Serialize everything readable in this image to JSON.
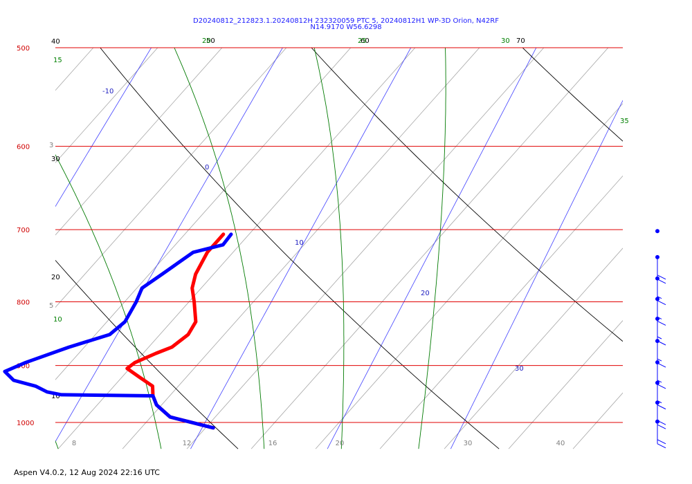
{
  "header": {
    "title_line1": "D20240812_212823.1.20240812H 232320059 PTC 5, 20240812H1 WP-3D Orion, N42RF",
    "title_line2": "N14.9170 W56.6298"
  },
  "footer": {
    "text": "Aspen V4.0.2, 12 Aug 2024  22:16 UTC"
  },
  "chart_data": {
    "type": "line",
    "subtype": "skew-T log-P diagram",
    "pressure_axis": {
      "ticks": [
        "500",
        "600",
        "700",
        "800",
        "900",
        "1000"
      ]
    },
    "temperature_axis": {
      "ticks": [
        "8",
        "12",
        "16",
        "20",
        "30",
        "40"
      ]
    },
    "isotherm_labels": [
      "-10",
      "0",
      "10",
      "20",
      "30"
    ],
    "mixing_ratio_labels": [
      "3",
      "5"
    ],
    "dry_adiabat_labels": [
      "40",
      "30",
      "20",
      "10",
      "50",
      "60",
      "70"
    ],
    "moist_adiabat_labels": [
      "15",
      "10",
      "20",
      "25",
      "30",
      "35"
    ],
    "series": [
      {
        "name": "",
        "color": "#ff0000",
        "points": [
          [
            706,
            -2.0
          ],
          [
            730,
            -2.0
          ],
          [
            760,
            -1.4
          ],
          [
            780,
            -0.7
          ],
          [
            800,
            0.4
          ],
          [
            830,
            1.9
          ],
          [
            850,
            2.2
          ],
          [
            870,
            1.8
          ],
          [
            880,
            1.0
          ],
          [
            895,
            0.0
          ],
          [
            905,
            -0.2
          ],
          [
            920,
            1.4
          ],
          [
            935,
            3.0
          ],
          [
            952,
            3.7
          ],
          [
            968,
            4.6
          ],
          [
            990,
            6.5
          ],
          [
            1010,
            10.6
          ]
        ]
      },
      {
        "name": "",
        "color": "#0000ff",
        "points": [
          [
            706,
            -1.4
          ],
          [
            720,
            -1.3
          ],
          [
            730,
            -3.1
          ],
          [
            760,
            -4.0
          ],
          [
            780,
            -4.6
          ],
          [
            800,
            -4.1
          ],
          [
            830,
            -3.6
          ],
          [
            850,
            -3.9
          ],
          [
            870,
            -6.2
          ],
          [
            895,
            -8.5
          ],
          [
            910,
            -9.5
          ],
          [
            925,
            -8.2
          ],
          [
            935,
            -6.1
          ],
          [
            945,
            -4.8
          ],
          [
            950,
            -3.5
          ],
          [
            952,
            3.7
          ],
          [
            968,
            4.6
          ],
          [
            990,
            6.5
          ],
          [
            1010,
            10.6
          ]
        ]
      }
    ],
    "wind_barbs": [
      {
        "pressure": 710,
        "speed_kt": 0,
        "dir_deg": 0
      },
      {
        "pressure": 745,
        "speed_kt": 20,
        "dir_deg": 90
      },
      {
        "pressure": 775,
        "speed_kt": 15,
        "dir_deg": 90
      },
      {
        "pressure": 805,
        "speed_kt": 15,
        "dir_deg": 90
      },
      {
        "pressure": 835,
        "speed_kt": 15,
        "dir_deg": 90
      },
      {
        "pressure": 870,
        "speed_kt": 15,
        "dir_deg": 90
      },
      {
        "pressure": 905,
        "speed_kt": 15,
        "dir_deg": 90
      },
      {
        "pressure": 940,
        "speed_kt": 15,
        "dir_deg": 90
      },
      {
        "pressure": 975,
        "speed_kt": 20,
        "dir_deg": 90
      },
      {
        "pressure": 1010,
        "speed_kt": 20,
        "dir_deg": 90
      }
    ]
  }
}
